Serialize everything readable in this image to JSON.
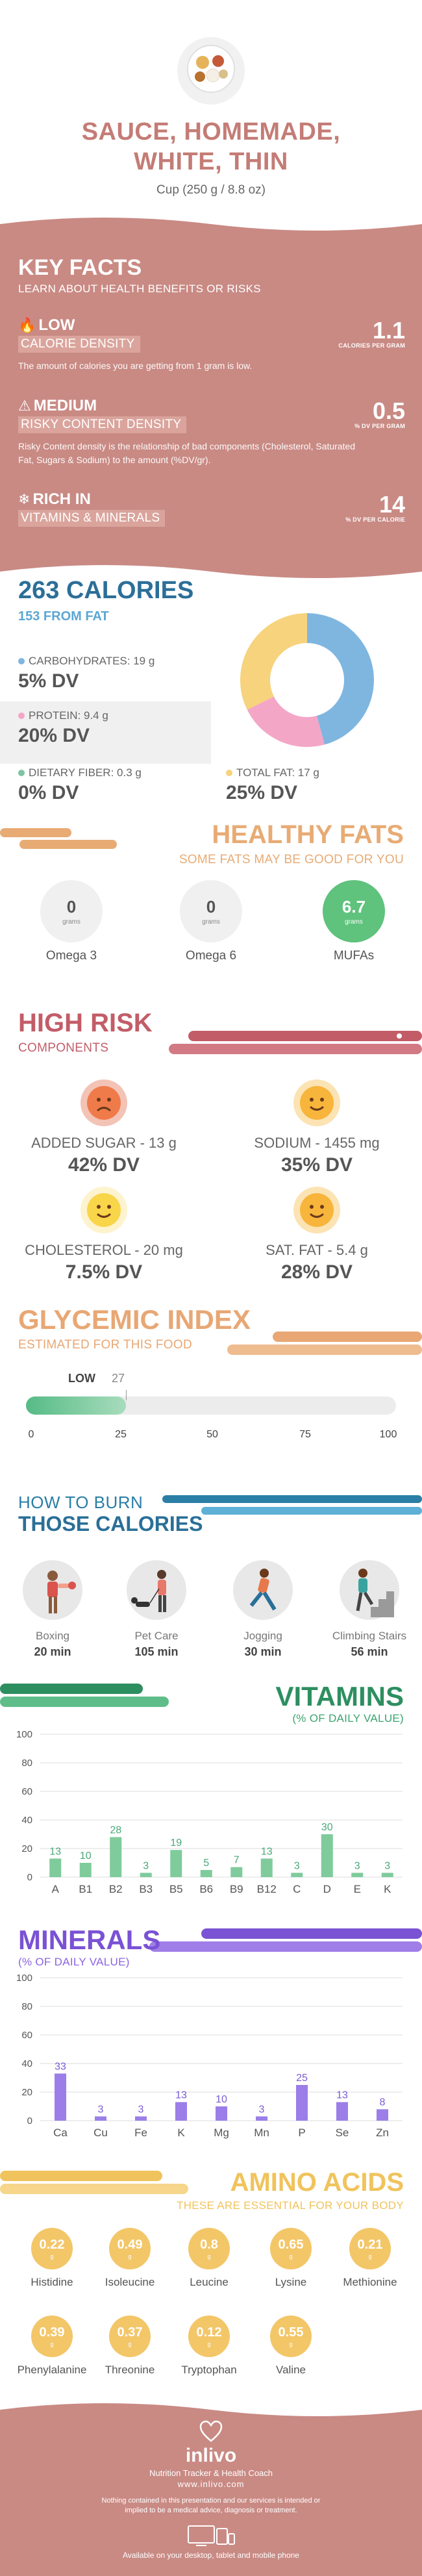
{
  "header": {
    "title_line1": "SAUCE, HOMEMADE,",
    "title_line2": "WHITE, THIN",
    "serving": "Cup (250 g / 8.8 oz)"
  },
  "key_facts": {
    "title": "KEY FACTS",
    "subtitle": "LEARN ABOUT HEALTH BENEFITS OR RISKS",
    "items": [
      {
        "level": "LOW",
        "label": "CALORIE DENSITY",
        "description": "The amount of calories you are getting from 1 gram is low.",
        "value": "1.1",
        "unit": "CALORIES PER GRAM",
        "icon": "flame-icon"
      },
      {
        "level": "MEDIUM",
        "label": "RISKY CONTENT DENSITY",
        "description": "Risky Content density is the relationship of bad components (Cholesterol, Saturated Fat, Sugars & Sodium) to the amount (%DV/gr).",
        "value": "0.5",
        "unit": "% DV PER GRAM",
        "icon": "warning-icon"
      },
      {
        "level": "RICH IN",
        "label": "VITAMINS & MINERALS",
        "description": "",
        "value": "14",
        "unit": "% DV PER CALORIE",
        "icon": "leaf-icon"
      }
    ]
  },
  "calories": {
    "title": "263 CALORIES",
    "subtitle": "153 FROM FAT",
    "macros": [
      {
        "label": "CARBOHYDRATES: 19 g",
        "dv": "5% DV",
        "color": "#7fb6e0"
      },
      {
        "label": "PROTEIN: 9.4 g",
        "dv": "20% DV",
        "color": "#f4a6c7"
      },
      {
        "label": "DIETARY FIBER: 0.3 g",
        "dv": "0% DV",
        "color": "#7fc3a3"
      },
      {
        "label": "TOTAL FAT: 17 g",
        "dv": "25% DV",
        "color": "#f6d37c"
      }
    ]
  },
  "healthy_fats": {
    "title": "HEALTHY FATS",
    "subtitle": "SOME FATS MAY BE GOOD FOR YOU",
    "unit": "grams",
    "items": [
      {
        "value": "0",
        "label": "Omega 3"
      },
      {
        "value": "0",
        "label": "Omega 6"
      },
      {
        "value": "6.7",
        "label": "MUFAs"
      }
    ]
  },
  "high_risk": {
    "title": "HIGH RISK",
    "subtitle": "COMPONENTS",
    "items": [
      {
        "label": "ADDED SUGAR - 13 g",
        "dv": "42% DV",
        "face": "sad-face-icon"
      },
      {
        "label": "SODIUM - 1455 mg",
        "dv": "35% DV",
        "face": "smile-face-icon"
      },
      {
        "label": "CHOLESTEROL - 20 mg",
        "dv": "7.5% DV",
        "face": "smile-face-icon"
      },
      {
        "label": "SAT. FAT - 5.4 g",
        "dv": "28% DV",
        "face": "smile-face-icon"
      }
    ]
  },
  "glycemic": {
    "title": "GLYCEMIC INDEX",
    "subtitle": "ESTIMATED FOR THIS FOOD",
    "level": "LOW",
    "value": 27,
    "value_label": "27",
    "ticks": [
      "0",
      "25",
      "50",
      "75",
      "100"
    ]
  },
  "burn": {
    "title_line1": "HOW TO BURN",
    "title_line2": "THOSE CALORIES",
    "activities": [
      {
        "label": "Boxing",
        "minutes": "20 min",
        "icon": "boxing-icon"
      },
      {
        "label": "Pet Care",
        "minutes": "105 min",
        "icon": "pet-care-icon"
      },
      {
        "label": "Jogging",
        "minutes": "30 min",
        "icon": "jogging-icon"
      },
      {
        "label": "Climbing Stairs",
        "minutes": "56 min",
        "icon": "climbing-stairs-icon"
      }
    ]
  },
  "chart_data": [
    {
      "type": "bar",
      "title": "VITAMINS",
      "subtitle": "(% OF DAILY VALUE)",
      "categories": [
        "A",
        "B1",
        "B2",
        "B3",
        "B5",
        "B6",
        "B9",
        "B12",
        "C",
        "D",
        "E",
        "K"
      ],
      "values": [
        13,
        10,
        28,
        3,
        19,
        5,
        7,
        13,
        3,
        30,
        3,
        3
      ],
      "ylim": [
        0,
        100
      ],
      "yticks": [
        "0",
        "20",
        "40",
        "60",
        "80",
        "100"
      ],
      "color": "#7fcb9c",
      "label_color": "#4aa877",
      "grid": true
    },
    {
      "type": "bar",
      "title": "MINERALS",
      "subtitle": "(% OF DAILY VALUE)",
      "categories": [
        "Ca",
        "Cu",
        "Fe",
        "K",
        "Mg",
        "Mn",
        "P",
        "Se",
        "Zn"
      ],
      "values": [
        33,
        3,
        3,
        13,
        10,
        3,
        25,
        13,
        8
      ],
      "ylim": [
        0,
        100
      ],
      "yticks": [
        "0",
        "20",
        "40",
        "60",
        "80",
        "100"
      ],
      "color": "#9b7ee8",
      "label_color": "#7a5bd6",
      "grid": true
    }
  ],
  "amino": {
    "title": "AMINO ACIDS",
    "subtitle": "THESE ARE ESSENTIAL FOR YOUR BODY",
    "unit": "g",
    "items": [
      {
        "value": "0.22",
        "label": "Histidine"
      },
      {
        "value": "0.49",
        "label": "Isoleucine"
      },
      {
        "value": "0.8",
        "label": "Leucine"
      },
      {
        "value": "0.65",
        "label": "Lysine"
      },
      {
        "value": "0.21",
        "label": "Methionine"
      },
      {
        "value": "0.39",
        "label": "Phenylalanine"
      },
      {
        "value": "0.37",
        "label": "Threonine"
      },
      {
        "value": "0.12",
        "label": "Tryptophan"
      },
      {
        "value": "0.55",
        "label": "Valine"
      }
    ]
  },
  "footer": {
    "brand": "inlivo",
    "tagline": "Nutrition Tracker & Health Coach",
    "url": "www.inlivo.com",
    "disclaimer": "Nothing contained in this presentation and our services is intended or implied to be a medical advice, diagnosis or treatment.",
    "devices": "Available on your desktop, tablet and mobile phone"
  }
}
